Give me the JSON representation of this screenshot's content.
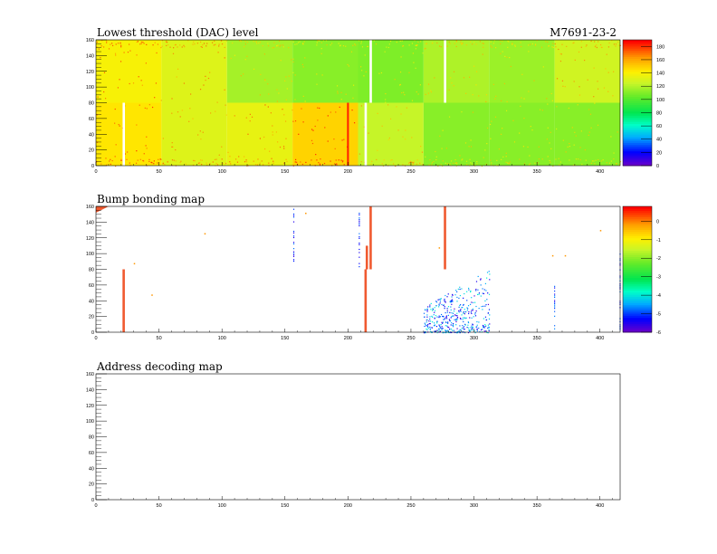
{
  "header": {
    "module_id": "M7691-23-2"
  },
  "chart_data": [
    {
      "type": "heatmap",
      "title": "Lowest threshold (DAC) level",
      "x_ticks": [
        "0",
        "50",
        "100",
        "150",
        "200",
        "250",
        "300",
        "350",
        "400"
      ],
      "y_ticks": [
        "0",
        "20",
        "40",
        "60",
        "80",
        "100",
        "120",
        "140",
        "160"
      ],
      "xlim": [
        0,
        416
      ],
      "ylim": [
        0,
        160
      ],
      "zlim": [
        0,
        190
      ],
      "z_ticks": [
        "0",
        "20",
        "40",
        "60",
        "80",
        "100",
        "120",
        "140",
        "160",
        "180"
      ],
      "chip_grid": {
        "cols": 8,
        "rows": 2,
        "chip_width": 52,
        "chip_height": 80
      },
      "chip_levels": [
        {
          "row": "top",
          "values": [
            140,
            132,
            118,
            112,
            110,
            120,
            116,
            128
          ]
        },
        {
          "row": "bottom",
          "values": [
            145,
            132,
            135,
            150,
            125,
            112,
            112,
            112
          ]
        }
      ],
      "dead_columns": [
        {
          "x": 22,
          "y_range": [
            0,
            80
          ]
        },
        {
          "x": 218,
          "y_range": [
            80,
            160
          ]
        },
        {
          "x": 277,
          "y_range": [
            80,
            160
          ]
        },
        {
          "x": 214,
          "y_range": [
            0,
            80
          ]
        }
      ],
      "hot_columns": [
        {
          "x": 200,
          "y_range": [
            0,
            80
          ],
          "value": 185
        }
      ]
    },
    {
      "type": "heatmap",
      "title": "Bump bonding map",
      "x_ticks": [
        "0",
        "50",
        "100",
        "150",
        "200",
        "250",
        "300",
        "350",
        "400"
      ],
      "y_ticks": [
        "0",
        "20",
        "40",
        "60",
        "80",
        "100",
        "120",
        "140",
        "160"
      ],
      "xlim": [
        0,
        416
      ],
      "ylim": [
        0,
        160
      ],
      "zlim": [
        -6,
        0.8
      ],
      "z_ticks": [
        "0",
        "-1",
        "-2",
        "-3",
        "-4",
        "-5",
        "-6"
      ],
      "column_defects": [
        {
          "x": 22,
          "y_range": [
            0,
            80
          ]
        },
        {
          "x": 214,
          "y_range": [
            0,
            80
          ]
        },
        {
          "x": 218,
          "y_range": [
            80,
            160
          ]
        },
        {
          "x": 277,
          "y_range": [
            80,
            160
          ]
        },
        {
          "x": 215,
          "y_range": [
            80,
            110
          ]
        }
      ],
      "sparse_columns": [
        {
          "x": 157,
          "y_range": [
            85,
            160
          ]
        },
        {
          "x": 209,
          "y_range": [
            80,
            158
          ]
        },
        {
          "x": 364,
          "y_range": [
            5,
            60
          ]
        },
        {
          "x": 416,
          "y_range": [
            0,
            100
          ]
        }
      ],
      "cluster_region": {
        "x_range": [
          260,
          312
        ],
        "y_range": [
          0,
          80
        ]
      },
      "isolated_pixels": [
        {
          "x": 30,
          "y": 88
        },
        {
          "x": 44,
          "y": 48
        },
        {
          "x": 86,
          "y": 126
        },
        {
          "x": 166,
          "y": 152
        },
        {
          "x": 272,
          "y": 108
        },
        {
          "x": 362,
          "y": 98
        },
        {
          "x": 372,
          "y": 98
        },
        {
          "x": 400,
          "y": 130
        }
      ]
    },
    {
      "type": "heatmap",
      "title": "Address decoding map",
      "x_ticks": [
        "0",
        "50",
        "100",
        "150",
        "200",
        "250",
        "300",
        "350",
        "400"
      ],
      "y_ticks": [
        "0",
        "20",
        "40",
        "60",
        "80",
        "100",
        "120",
        "140",
        "160"
      ],
      "xlim": [
        0,
        416
      ],
      "ylim": [
        0,
        160
      ]
    }
  ]
}
